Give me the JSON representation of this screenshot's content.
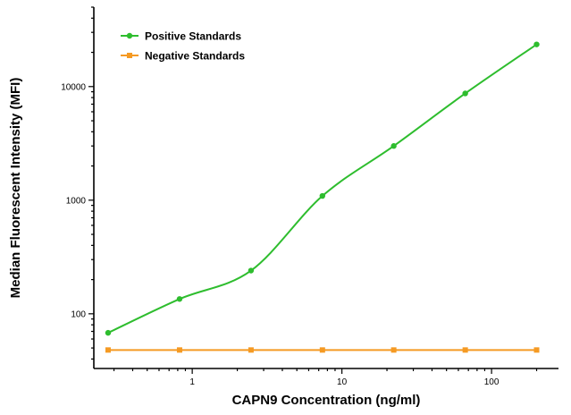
{
  "chart_data": {
    "type": "scatter",
    "title": "",
    "xlabel": "CAPN9 Concentration (ng/ml)",
    "ylabel": "Median Fluorescent Intensity (MFI)",
    "xscale": "log",
    "yscale": "log",
    "xlim": [
      0.22,
      280
    ],
    "ylim": [
      33,
      50000
    ],
    "xticks": [
      1,
      10,
      100
    ],
    "xtick_labels": [
      "1",
      "10",
      "100"
    ],
    "yticks": [
      100,
      1000,
      10000
    ],
    "ytick_labels": [
      "100",
      "1000",
      "10000"
    ],
    "grid": false,
    "legend_position": "top-left",
    "series": [
      {
        "name": "Positive Standards",
        "color": "#2ebd2e",
        "marker": "circle",
        "fit": "curve",
        "x": [
          0.274,
          0.823,
          2.47,
          7.41,
          22.2,
          66.7,
          200
        ],
        "y": [
          68,
          135,
          240,
          1090,
          3000,
          8700,
          23500
        ]
      },
      {
        "name": "Negative Standards",
        "color": "#f59a23",
        "marker": "square",
        "fit": "line",
        "x": [
          0.274,
          0.823,
          2.47,
          7.41,
          22.2,
          66.7,
          200
        ],
        "y": [
          48,
          48,
          48,
          48,
          48,
          48,
          48
        ]
      }
    ]
  }
}
